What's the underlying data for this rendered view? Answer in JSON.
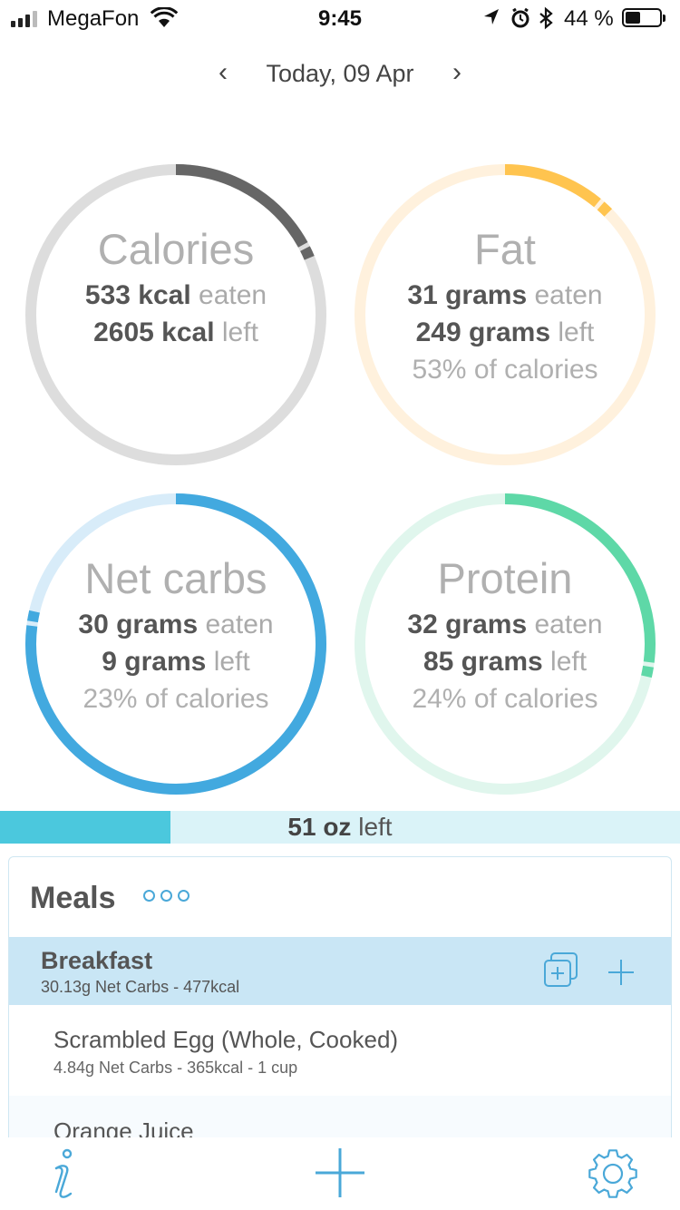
{
  "status_bar": {
    "carrier": "MegaFon",
    "time": "9:45",
    "battery_percent_text": "44 %",
    "battery_level": 0.44,
    "icons": [
      "signal-icon",
      "wifi-icon",
      "location-arrow-icon",
      "alarm-icon",
      "bluetooth-icon",
      "battery-icon"
    ]
  },
  "date_nav": {
    "label": "Today, 09 Apr",
    "prev_glyph": "‹",
    "next_glyph": "›"
  },
  "colors": {
    "calories": "#666666",
    "calories_track": "#dddddd",
    "fat": "#ffc44f",
    "fat_track": "#fff1dd",
    "carbs": "#42a9df",
    "carbs_track": "#d8ecf9",
    "protein": "#5ed8a7",
    "protein_track": "#e0f6ed",
    "water": "#4bc8dd",
    "accent": "#4aa8d8"
  },
  "rings": {
    "calories": {
      "title": "Calories",
      "eaten_value": "533 kcal",
      "eaten_label": " eaten",
      "left_value": "2605 kcal",
      "left_label": " left",
      "progress": 0.17
    },
    "fat": {
      "title": "Fat",
      "eaten_value": "31 grams",
      "eaten_label": " eaten",
      "left_value": "249 grams",
      "left_label": " left",
      "pct_text": "53% of calories",
      "progress": 0.11
    },
    "carbs": {
      "title": "Net carbs",
      "eaten_value": "30 grams",
      "eaten_label": " eaten",
      "left_value": "9 grams",
      "left_label": " left",
      "pct_text": "23% of calories",
      "progress": 0.77
    },
    "protein": {
      "title": "Protein",
      "eaten_value": "32 grams",
      "eaten_label": " eaten",
      "left_value": "85 grams",
      "left_label": " left",
      "pct_text": "24% of calories",
      "progress": 0.27
    }
  },
  "water": {
    "value": "51 oz",
    "label": " left",
    "progress": 0.25
  },
  "meals": {
    "title": "Meals",
    "sections": [
      {
        "name": "Breakfast",
        "summary": "30.13g Net Carbs - 477kcal",
        "items": [
          {
            "name": "Scrambled Egg (Whole, Cooked)",
            "detail": "4.84g Net Carbs - 365kcal - 1 cup"
          },
          {
            "name": "Orange Juice",
            "detail": ""
          }
        ]
      }
    ]
  },
  "tabbar": {
    "icons": [
      "info-icon",
      "add-icon",
      "settings-gear-icon"
    ]
  }
}
